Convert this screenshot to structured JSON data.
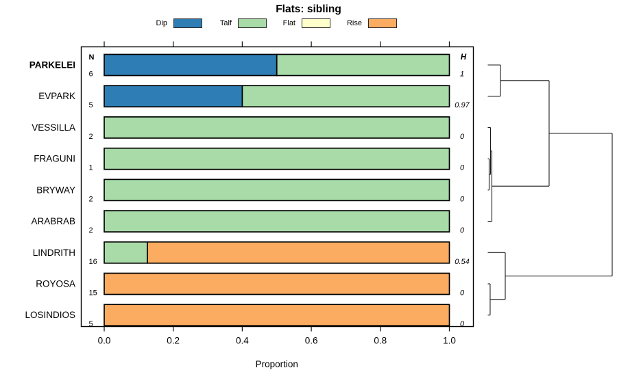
{
  "title": "Flats: sibling",
  "legend": {
    "items": [
      {
        "label": "Dip",
        "color": "#2E7EB5"
      },
      {
        "label": "Talf",
        "color": "#A8DBA8"
      },
      {
        "label": "Flat",
        "color": "#FFFFCC"
      },
      {
        "label": "Rise",
        "color": "#FBAC60"
      }
    ]
  },
  "columns": {
    "n_header": "N",
    "h_header": "H"
  },
  "xlabel": "Proportion",
  "chart_data": {
    "type": "bar",
    "orientation": "horizontal",
    "stacked": true,
    "title": "Flats: sibling",
    "xlabel": "Proportion",
    "xlim": [
      0,
      1
    ],
    "xticks": [
      0.0,
      0.2,
      0.4,
      0.6,
      0.8,
      1.0
    ],
    "categories": [
      "PARKELEI",
      "EVPARK",
      "VESSILLA",
      "FRAGUNI",
      "BRYWAY",
      "ARABRAB",
      "LINDRITH",
      "ROYOSA",
      "LOSINDIOS"
    ],
    "emphasized_categories": [
      "PARKELEI"
    ],
    "series": [
      {
        "name": "Dip",
        "color": "#2E7EB5",
        "values": [
          0.5,
          0.4,
          0,
          0,
          0,
          0,
          0,
          0,
          0
        ]
      },
      {
        "name": "Talf",
        "color": "#A8DBA8",
        "values": [
          0.5,
          0.6,
          1,
          1,
          1,
          1,
          0.125,
          0,
          0
        ]
      },
      {
        "name": "Flat",
        "color": "#FFFFCC",
        "values": [
          0,
          0,
          0,
          0,
          0,
          0,
          0,
          0,
          0
        ]
      },
      {
        "name": "Rise",
        "color": "#FBAC60",
        "values": [
          0,
          0,
          0,
          0,
          0,
          0,
          0.875,
          1,
          1
        ]
      }
    ],
    "n_values": [
      "6",
      "5",
      "2",
      "1",
      "2",
      "2",
      "16",
      "15",
      "5"
    ],
    "h_values": [
      "1",
      "0.97",
      "0",
      "0",
      "0",
      "0",
      "0.54",
      "0",
      "0"
    ],
    "dendrogram": {
      "note": "h = relative merge height, 0 at leaf edge, 1 at root",
      "tree": {
        "h": 1.0,
        "children": [
          {
            "h": 0.493,
            "children": [
              {
                "h": 0.102,
                "children": [
                  "PARKELEI",
                  "EVPARK"
                ]
              },
              {
                "h": 0.033,
                "children": [
                  {
                    "h": 0.022,
                    "children": [
                      "VESSILLA",
                      {
                        "h": 0.011,
                        "children": [
                          "FRAGUNI",
                          "BRYWAY"
                        ]
                      }
                    ]
                  },
                  "ARABRAB"
                ]
              }
            ]
          },
          {
            "h": 0.1405,
            "children": [
              "LINDRITH",
              {
                "h": 0.019,
                "children": [
                  "ROYOSA",
                  "LOSINDIOS"
                ]
              }
            ]
          }
        ]
      }
    }
  }
}
